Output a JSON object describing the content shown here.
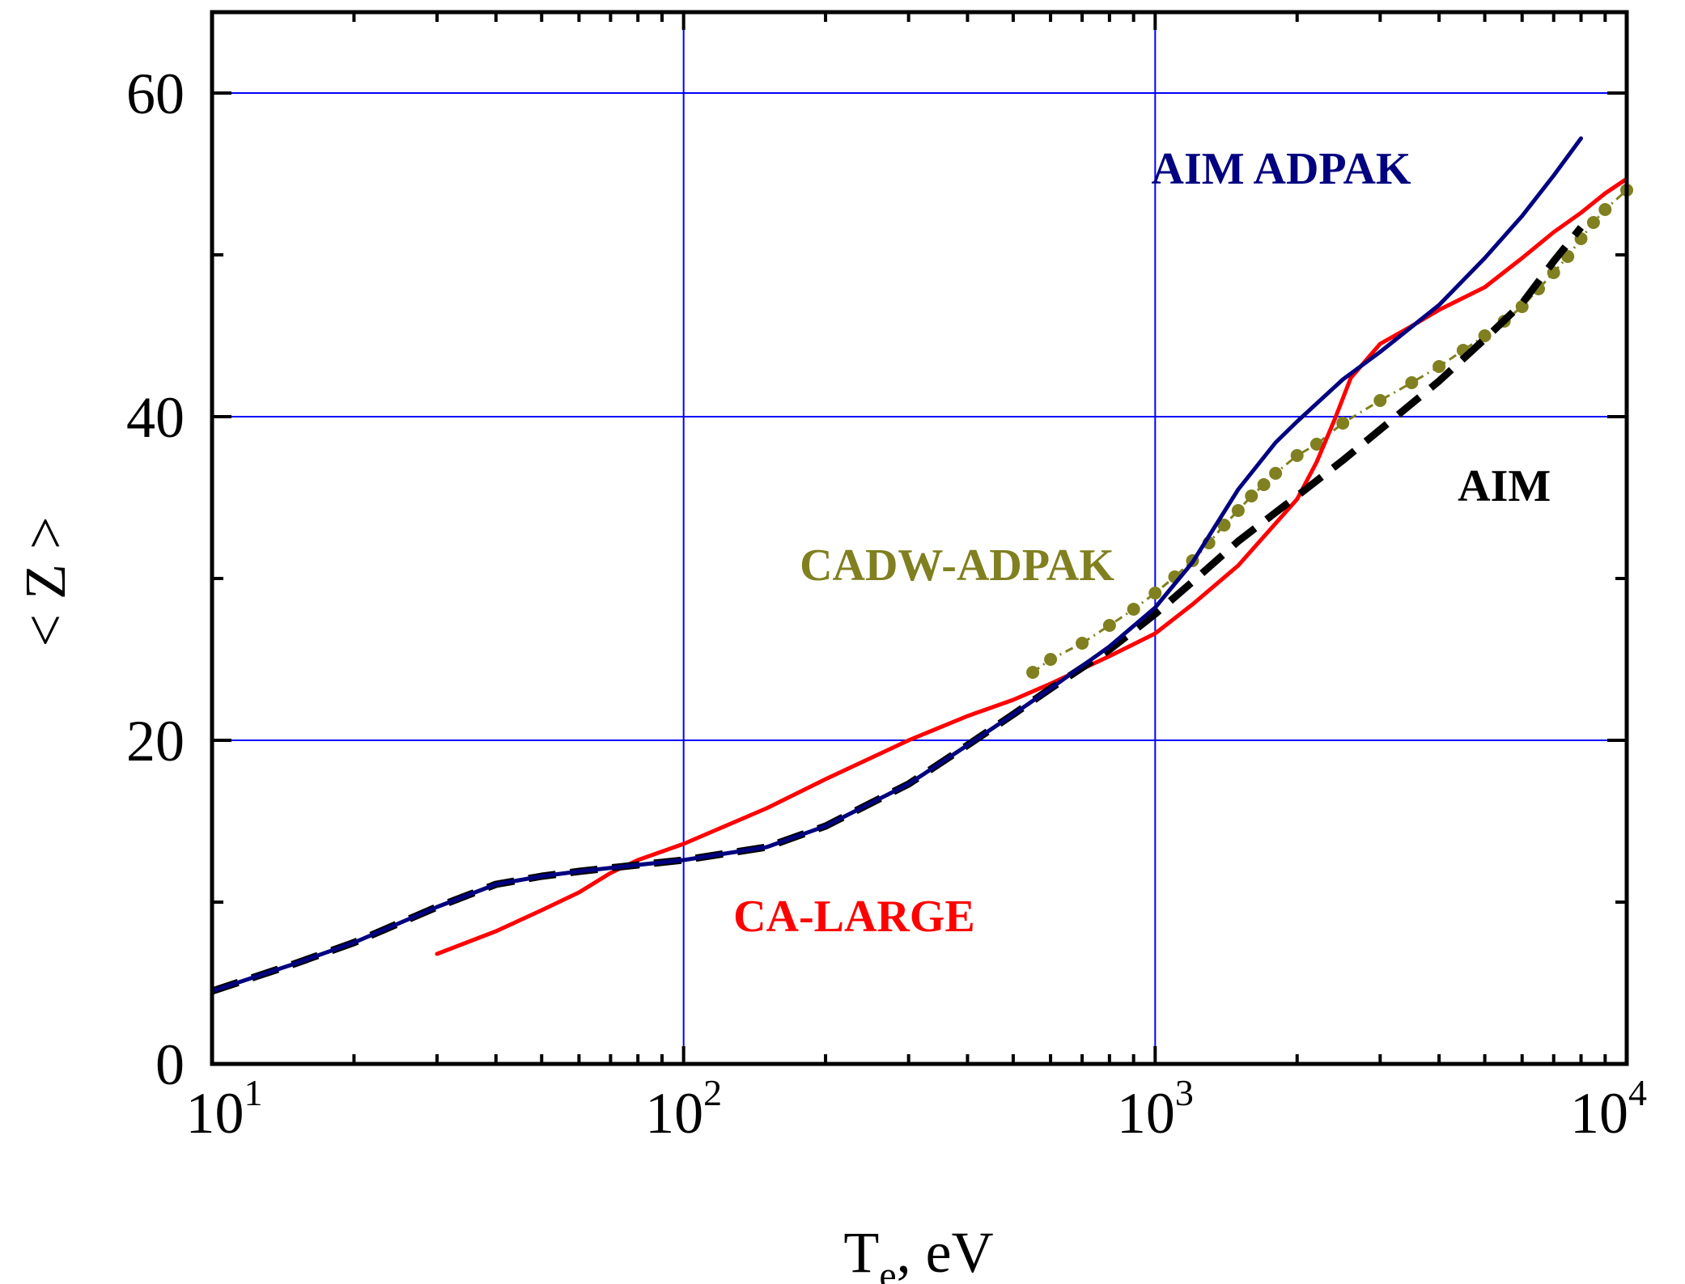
{
  "chart_data": {
    "type": "line",
    "xlabel": {
      "main": "T",
      "sub": "e",
      "rest": ", eV"
    },
    "ylabel": "< Z >",
    "xscale": "log",
    "xlim": [
      10,
      10000
    ],
    "ylim": [
      0,
      65
    ],
    "x_ticks": [
      {
        "base": "10",
        "exp": "1",
        "value": 10
      },
      {
        "base": "10",
        "exp": "2",
        "value": 100
      },
      {
        "base": "10",
        "exp": "3",
        "value": 1000
      },
      {
        "base": "10",
        "exp": "4",
        "value": 10000
      }
    ],
    "y_ticks": [
      {
        "label": "0",
        "value": 0
      },
      {
        "label": "20",
        "value": 20
      },
      {
        "label": "40",
        "value": 40
      },
      {
        "label": "60",
        "value": 60
      }
    ],
    "grid": true,
    "series": [
      {
        "key": "aim_adpak",
        "name": "AIM ADPAK",
        "color": "#000080",
        "style": "solid",
        "x": [
          10,
          15,
          20,
          30,
          40,
          50,
          60,
          80,
          100,
          150,
          200,
          300,
          400,
          500,
          600,
          800,
          1000,
          1200,
          1500,
          1800,
          2000,
          2500,
          3000,
          4000,
          5000,
          6000,
          7000,
          8000
        ],
        "y": [
          4.5,
          6.2,
          7.5,
          9.7,
          11.1,
          11.6,
          11.9,
          12.3,
          12.6,
          13.4,
          14.7,
          17.3,
          19.7,
          21.6,
          23.2,
          25.8,
          28.2,
          31,
          35.5,
          38.4,
          39.7,
          42.3,
          44,
          46.9,
          49.8,
          52.4,
          54.9,
          57.2
        ]
      },
      {
        "key": "aim",
        "name": "AIM",
        "color": "#000000",
        "style": "dashed",
        "x": [
          10,
          15,
          20,
          30,
          40,
          50,
          60,
          80,
          100,
          150,
          200,
          300,
          400,
          500,
          600,
          800,
          1000,
          1200,
          1500,
          2000,
          2500,
          3000,
          4000,
          5000,
          6000,
          7000,
          8000
        ],
        "y": [
          4.5,
          6.2,
          7.5,
          9.7,
          11.1,
          11.6,
          11.9,
          12.3,
          12.6,
          13.4,
          14.7,
          17.3,
          19.7,
          21.6,
          23.2,
          25.6,
          27.8,
          29.8,
          32.3,
          35.1,
          37.3,
          39.2,
          42.2,
          44.8,
          47,
          49.6,
          51.7
        ]
      },
      {
        "key": "ca_large",
        "name": "CA-LARGE",
        "color": "#ff0000",
        "style": "solid",
        "x": [
          30,
          40,
          50,
          60,
          70,
          80,
          100,
          150,
          200,
          300,
          400,
          500,
          600,
          800,
          1000,
          1200,
          1500,
          2000,
          2200,
          2400,
          2600,
          3000,
          3500,
          4000,
          5000,
          6000,
          7000,
          8000,
          9000,
          10000
        ],
        "y": [
          6.8,
          8.2,
          9.5,
          10.6,
          11.8,
          12.6,
          13.6,
          15.8,
          17.6,
          20,
          21.5,
          22.5,
          23.5,
          25.2,
          26.6,
          28.4,
          30.8,
          34.9,
          37.2,
          39.8,
          42.4,
          44.5,
          45.6,
          46.6,
          48,
          49.8,
          51.4,
          52.6,
          53.8,
          54.7
        ]
      },
      {
        "key": "cadw_adpak",
        "name": "CADW-ADPAK",
        "color": "#808020",
        "style": "dotted",
        "x": [
          550,
          600,
          700,
          800,
          900,
          1000,
          1100,
          1200,
          1300,
          1400,
          1500,
          1600,
          1700,
          1800,
          2000,
          2200,
          2500,
          3000,
          3500,
          4000,
          4500,
          5000,
          5500,
          6000,
          6500,
          7000,
          7500,
          8000,
          8500,
          9000,
          10000
        ],
        "y": [
          24.2,
          25,
          26,
          27.1,
          28.1,
          29.1,
          30.1,
          31.1,
          32.2,
          33.3,
          34.2,
          35.1,
          35.8,
          36.5,
          37.6,
          38.3,
          39.6,
          41,
          42.1,
          43.1,
          44.1,
          45,
          45.9,
          46.8,
          47.9,
          48.9,
          49.9,
          51,
          52,
          52.8,
          54
        ]
      }
    ],
    "annotations": [
      {
        "key": "aim_adpak",
        "text": "AIM ADPAK",
        "color": "#000080",
        "x": 1850,
        "y": 54.4
      },
      {
        "key": "aim",
        "text": "AIM",
        "color": "#000000",
        "x": 5500,
        "y": 34.8
      },
      {
        "key": "cadw_adpak",
        "text": "CADW-ADPAK",
        "color": "#808020",
        "x": 380,
        "y": 29.9
      },
      {
        "key": "ca_large",
        "text": "CA-LARGE",
        "color": "#ff0000",
        "x": 230,
        "y": 8.2
      }
    ]
  }
}
